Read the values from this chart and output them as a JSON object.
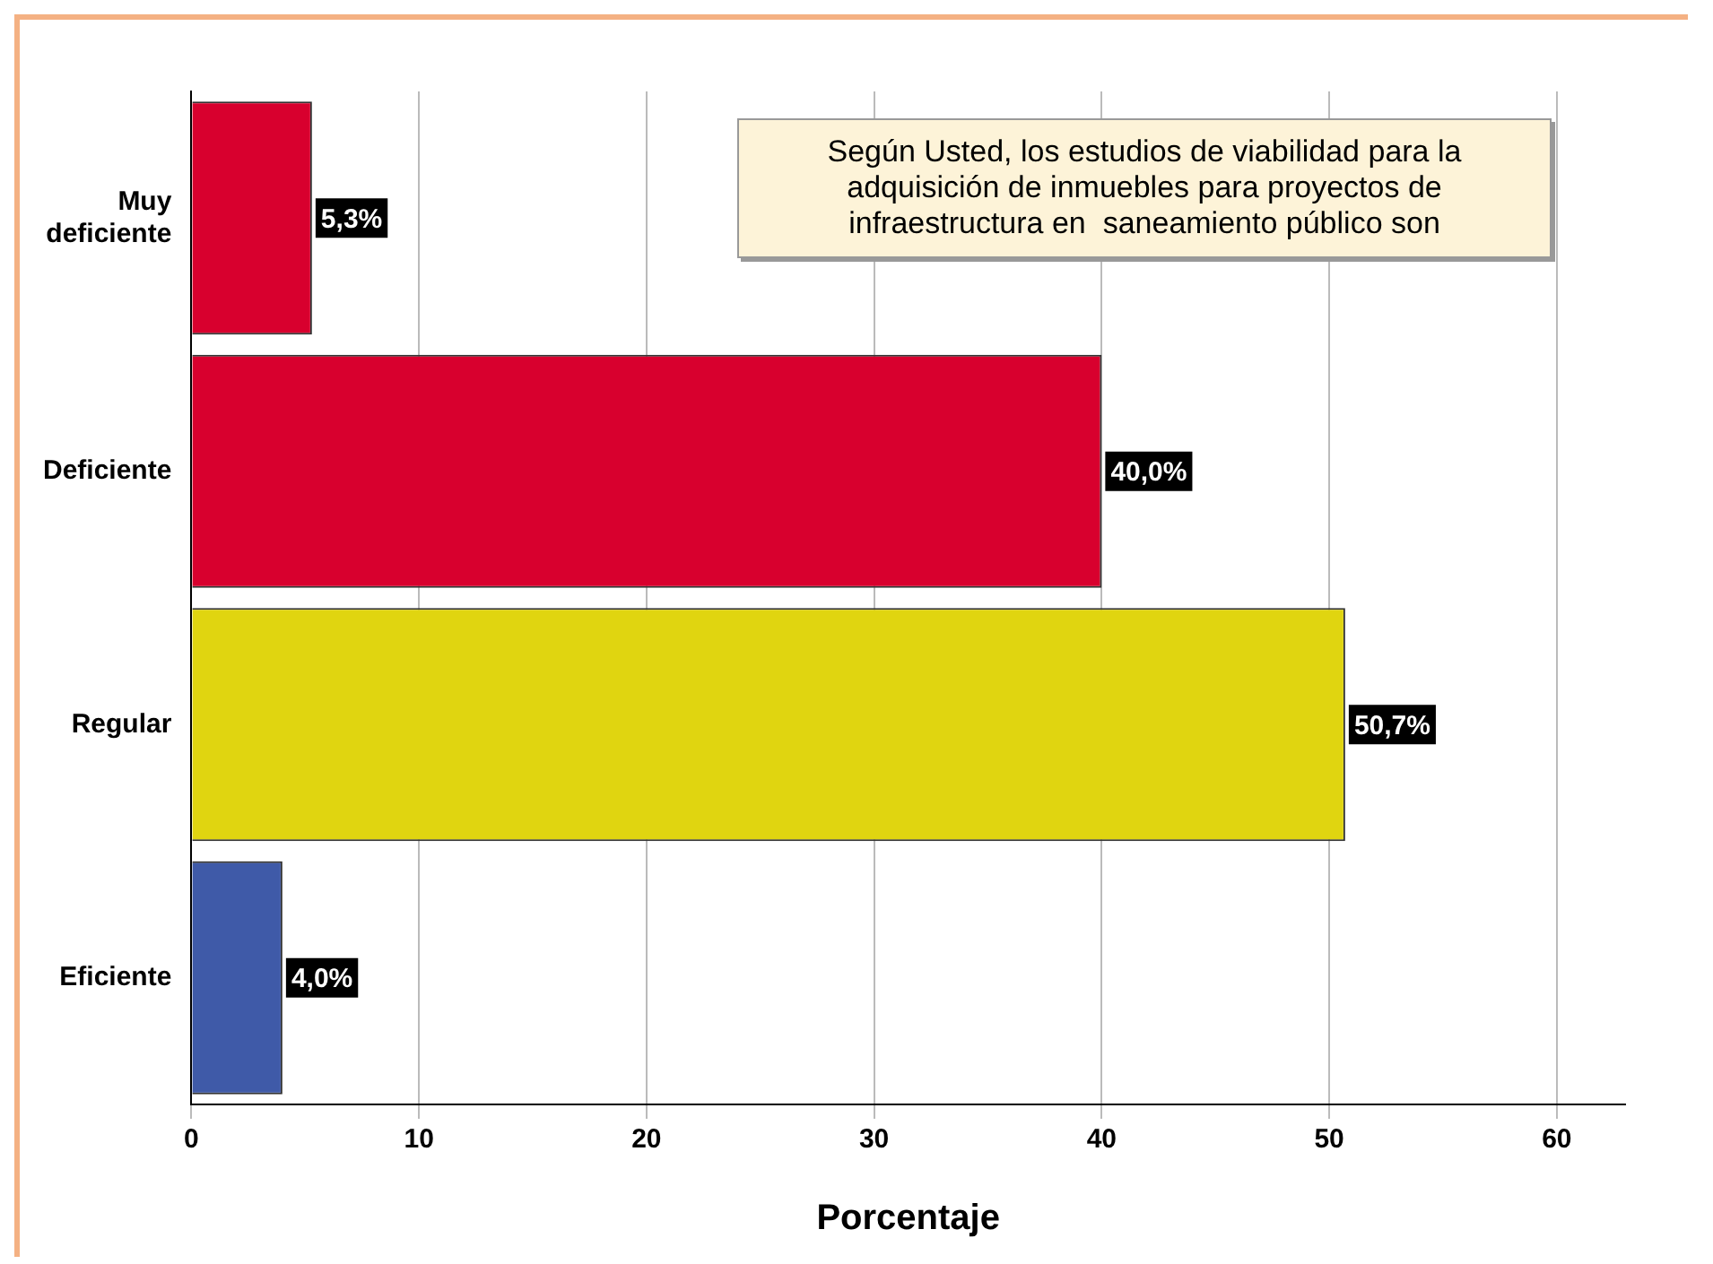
{
  "chart_data": {
    "type": "bar",
    "orientation": "horizontal",
    "title": "Según Usted, los estudios de viabilidad para la adquisición de inmuebles para proyectos de infraestructura en  saneamiento público son",
    "xlabel": "Porcentaje",
    "categories": [
      "Muy\ndeficiente",
      "Deficiente",
      "Regular",
      "Eficiente"
    ],
    "values": [
      5.3,
      40.0,
      50.7,
      4.0
    ],
    "value_labels": [
      "5,3%",
      "40,0%",
      "50,7%",
      "4,0%"
    ],
    "colors": [
      "#d8002e",
      "#d8002e",
      "#e0d510",
      "#3f5aa8"
    ],
    "xlim": [
      0,
      63
    ],
    "xticks": [
      0,
      10,
      20,
      30,
      40,
      50,
      60
    ],
    "grid": "x",
    "legend": false
  }
}
